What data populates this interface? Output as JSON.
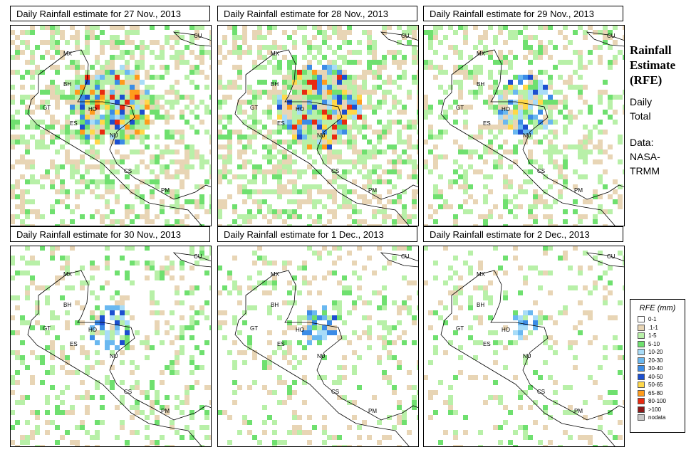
{
  "panels": [
    {
      "title": "Daily Rainfall estimate for  27 Nov., 2013",
      "intensity": 0.95
    },
    {
      "title": "Daily Rainfall estimate for  28 Nov., 2013",
      "intensity": 1.0
    },
    {
      "title": "Daily Rainfall estimate for  29 Nov., 2013",
      "intensity": 0.7
    },
    {
      "title": "Daily Rainfall estimate for  30 Nov., 2013",
      "intensity": 0.55
    },
    {
      "title": "Daily Rainfall estimate for  1 Dec., 2013",
      "intensity": 0.45
    },
    {
      "title": "Daily Rainfall estimate for  2 Dec., 2013",
      "intensity": 0.35
    }
  ],
  "country_labels": [
    "CU",
    "MX",
    "BH",
    "GT",
    "HO",
    "ES",
    "NU",
    "CS",
    "PM"
  ],
  "side": {
    "title_line1": "Rainfall",
    "title_line2": "Estimate",
    "title_line3": "(RFE)",
    "period_line1": "Daily",
    "period_line2": "Total",
    "source_line1": "Data:",
    "source_line2": "NASA-",
    "source_line3": "TRMM"
  },
  "legend": {
    "title": "RFE (mm)",
    "bins": [
      {
        "label": "0-1",
        "color": "#ffffff"
      },
      {
        "label": ".1-1",
        "color": "#e8d5b5"
      },
      {
        "label": "1-5",
        "color": "#b8f0a8"
      },
      {
        "label": "5-10",
        "color": "#6fe06f"
      },
      {
        "label": "10-20",
        "color": "#a8dcf8"
      },
      {
        "label": "20-30",
        "color": "#6ab8f0"
      },
      {
        "label": "30-40",
        "color": "#3c8ce6"
      },
      {
        "label": "40-50",
        "color": "#1c4fd0"
      },
      {
        "label": "50-65",
        "color": "#ffd84a"
      },
      {
        "label": "65-80",
        "color": "#ff9c1c"
      },
      {
        "label": "80-100",
        "color": "#e82a10"
      },
      {
        "label": ">100",
        "color": "#8c1a1a"
      },
      {
        "label": "nodata",
        "color": "#c8c8c8"
      }
    ]
  }
}
